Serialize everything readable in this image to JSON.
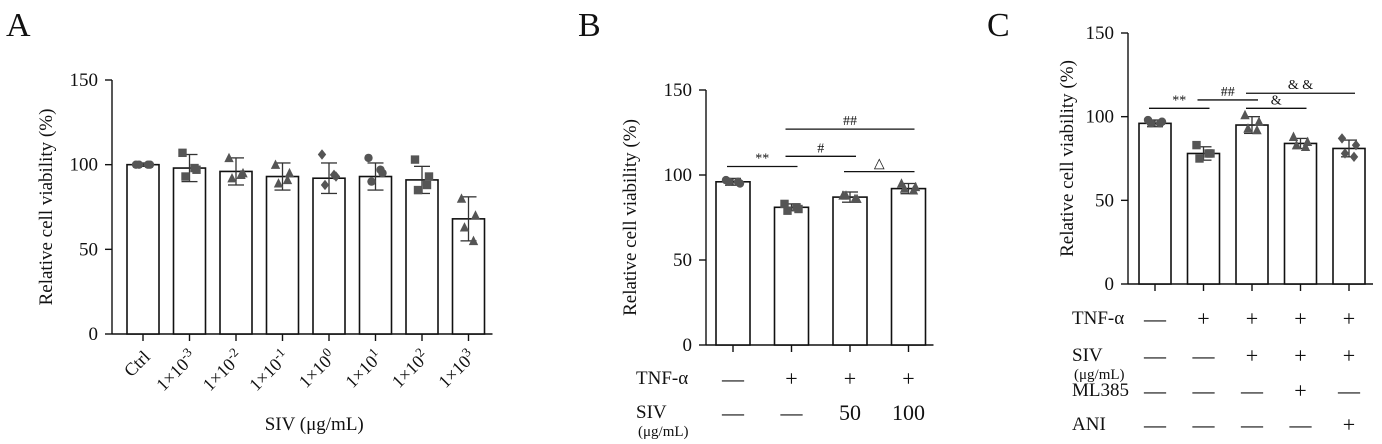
{
  "chart_data": [
    {
      "panel": "A",
      "type": "bar",
      "xlabel": "SIV (μg/mL)",
      "ylabel": "Relative cell viability (%)",
      "ylim": [
        0,
        150
      ],
      "yticks": [
        "0",
        "50",
        "100",
        "150"
      ],
      "categories": [
        {
          "base": "Ctrl",
          "exp": ""
        },
        {
          "base": "1×10",
          "exp": "-3"
        },
        {
          "base": "1×10",
          "exp": "-2"
        },
        {
          "base": "1×10",
          "exp": "-1"
        },
        {
          "base": "1×10",
          "exp": "0"
        },
        {
          "base": "1×10",
          "exp": "1"
        },
        {
          "base": "1×10",
          "exp": "2"
        },
        {
          "base": "1×10",
          "exp": "3"
        }
      ],
      "values": [
        100,
        98,
        96,
        93,
        92,
        93,
        91,
        68
      ],
      "errors": [
        1,
        8,
        8,
        8,
        9,
        8,
        8,
        13
      ],
      "points": [
        [
          100,
          100,
          100,
          100
        ],
        [
          107,
          97,
          93,
          98
        ],
        [
          104,
          95,
          92,
          94
        ],
        [
          100,
          95,
          89,
          91
        ],
        [
          106,
          93,
          88,
          94
        ],
        [
          104,
          95,
          90,
          97
        ],
        [
          103,
          93,
          85,
          88
        ],
        [
          80,
          70,
          63,
          55
        ]
      ],
      "markers": [
        "circle",
        "square",
        "triangle",
        "triangle",
        "diamond",
        "circle",
        "square",
        "triangle"
      ],
      "significance": []
    },
    {
      "panel": "B",
      "type": "bar",
      "xlabel": "",
      "ylabel": "Relative cell viability (%)",
      "ylim": [
        0,
        150
      ],
      "yticks": [
        "0",
        "50",
        "100",
        "150"
      ],
      "values": [
        96,
        81,
        87,
        92
      ],
      "errors": [
        2,
        2,
        3,
        3
      ],
      "points": [
        [
          97,
          95,
          96,
          96
        ],
        [
          83,
          80,
          79,
          81
        ],
        [
          88,
          86,
          88,
          86
        ],
        [
          95,
          93,
          92,
          91
        ]
      ],
      "markers": [
        "circle",
        "square",
        "triangle",
        "triangle"
      ],
      "treatments": [
        {
          "label": "TNF-α",
          "sub": "",
          "values": [
            "—",
            "+",
            "+",
            "+"
          ]
        },
        {
          "label": "SIV",
          "sub": "(μg/mL)",
          "values": [
            "—",
            "—",
            "50",
            "100"
          ]
        }
      ],
      "significance": [
        {
          "from": 0,
          "to": 1,
          "y": 105,
          "label": "**"
        },
        {
          "from": 1,
          "to": 2,
          "y": 111,
          "label": "#"
        },
        {
          "from": 1,
          "to": 3,
          "y": 127,
          "label": "##"
        },
        {
          "from": 2,
          "to": 3,
          "y": 102,
          "label": "△"
        }
      ]
    },
    {
      "panel": "C",
      "type": "bar",
      "xlabel": "",
      "ylabel": "Relative cell viability (%)",
      "ylim": [
        0,
        150
      ],
      "yticks": [
        "0",
        "50",
        "100",
        "150"
      ],
      "values": [
        96,
        78,
        95,
        84,
        81
      ],
      "errors": [
        2,
        4,
        5,
        3,
        5
      ],
      "points": [
        [
          98,
          97,
          96,
          96
        ],
        [
          83,
          78,
          75,
          78
        ],
        [
          101,
          97,
          93,
          92
        ],
        [
          88,
          85,
          83,
          82
        ],
        [
          87,
          83,
          78,
          76
        ]
      ],
      "markers": [
        "circle",
        "square",
        "triangle",
        "triangle",
        "diamond"
      ],
      "treatments": [
        {
          "label": "TNF-α",
          "sub": "",
          "values": [
            "—",
            "+",
            "+",
            "+",
            "+"
          ]
        },
        {
          "label": "SIV",
          "sub": "(μg/mL)",
          "values": [
            "—",
            "—",
            "+",
            "+",
            "+"
          ]
        },
        {
          "label": "ML385",
          "sub": "",
          "values": [
            "—",
            "—",
            "—",
            "+",
            "—"
          ]
        },
        {
          "label": "ANI",
          "sub": "",
          "values": [
            "—",
            "—",
            "—",
            "—",
            "+"
          ]
        }
      ],
      "significance": [
        {
          "from": 0,
          "to": 1,
          "y": 105,
          "label": "**"
        },
        {
          "from": 1,
          "to": 2,
          "y": 110,
          "label": "##"
        },
        {
          "from": 2,
          "to": 3,
          "y": 105,
          "label": "&"
        },
        {
          "from": 2,
          "to": 4,
          "y": 114,
          "label": "& &"
        }
      ]
    }
  ]
}
